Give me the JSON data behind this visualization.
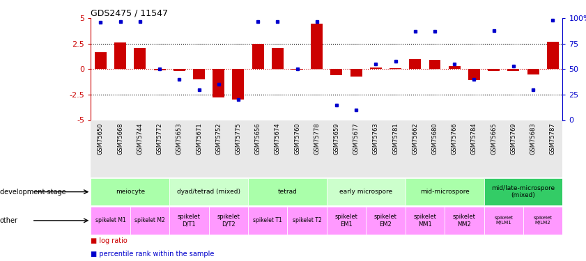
{
  "title": "GDS2475 / 11547",
  "samples": [
    "GSM75650",
    "GSM75668",
    "GSM75744",
    "GSM75772",
    "GSM75653",
    "GSM75671",
    "GSM75752",
    "GSM75775",
    "GSM75656",
    "GSM75674",
    "GSM75760",
    "GSM75778",
    "GSM75659",
    "GSM75677",
    "GSM75763",
    "GSM75781",
    "GSM75662",
    "GSM75680",
    "GSM75766",
    "GSM75784",
    "GSM75665",
    "GSM75769",
    "GSM75683",
    "GSM75787"
  ],
  "log_ratio": [
    1.7,
    2.6,
    2.1,
    -0.1,
    -0.2,
    -1.0,
    -2.8,
    -3.0,
    2.5,
    2.1,
    -0.05,
    4.5,
    -0.6,
    -0.7,
    0.15,
    0.1,
    1.0,
    0.9,
    0.3,
    -1.1,
    -0.15,
    -0.2,
    -0.5,
    2.7
  ],
  "percentile": [
    96,
    97,
    97,
    50,
    40,
    30,
    35,
    20,
    97,
    97,
    50,
    97,
    15,
    10,
    55,
    58,
    87,
    87,
    55,
    40,
    88,
    53,
    30,
    98
  ],
  "ylim": [
    -5,
    5
  ],
  "y2lim": [
    0,
    100
  ],
  "bar_color": "#cc0000",
  "dot_color": "#0000cc",
  "background_color": "#ffffff",
  "dev_stage_groups": [
    {
      "label": "meiocyte",
      "start": 0,
      "end": 4,
      "color": "#aaffaa"
    },
    {
      "label": "dyad/tetrad (mixed)",
      "start": 4,
      "end": 8,
      "color": "#ccffcc"
    },
    {
      "label": "tetrad",
      "start": 8,
      "end": 12,
      "color": "#aaffaa"
    },
    {
      "label": "early microspore",
      "start": 12,
      "end": 16,
      "color": "#ccffcc"
    },
    {
      "label": "mid-microspore",
      "start": 16,
      "end": 20,
      "color": "#aaffaa"
    },
    {
      "label": "mid/late-microspore\n(mixed)",
      "start": 20,
      "end": 24,
      "color": "#33cc66"
    }
  ],
  "other_groups": [
    {
      "label": "spikelet M1",
      "start": 0,
      "end": 2,
      "color": "#ff99ff",
      "fontsize": 5.5
    },
    {
      "label": "spikelet M2",
      "start": 2,
      "end": 4,
      "color": "#ff99ff",
      "fontsize": 5.5
    },
    {
      "label": "spikelet\nD/T1",
      "start": 4,
      "end": 6,
      "color": "#ff99ff",
      "fontsize": 6
    },
    {
      "label": "spikelet\nD/T2",
      "start": 6,
      "end": 8,
      "color": "#ff99ff",
      "fontsize": 6
    },
    {
      "label": "spikelet T1",
      "start": 8,
      "end": 10,
      "color": "#ff99ff",
      "fontsize": 5.5
    },
    {
      "label": "spikelet T2",
      "start": 10,
      "end": 12,
      "color": "#ff99ff",
      "fontsize": 5.5
    },
    {
      "label": "spikelet\nEM1",
      "start": 12,
      "end": 14,
      "color": "#ff99ff",
      "fontsize": 6
    },
    {
      "label": "spikelet\nEM2",
      "start": 14,
      "end": 16,
      "color": "#ff99ff",
      "fontsize": 6
    },
    {
      "label": "spikelet\nMM1",
      "start": 16,
      "end": 18,
      "color": "#ff99ff",
      "fontsize": 6
    },
    {
      "label": "spikelet\nMM2",
      "start": 18,
      "end": 20,
      "color": "#ff99ff",
      "fontsize": 6
    },
    {
      "label": "spikelet\nM/LM1",
      "start": 20,
      "end": 22,
      "color": "#ff99ff",
      "fontsize": 5
    },
    {
      "label": "spikelet\nM/LM2",
      "start": 22,
      "end": 24,
      "color": "#ff99ff",
      "fontsize": 5
    }
  ]
}
